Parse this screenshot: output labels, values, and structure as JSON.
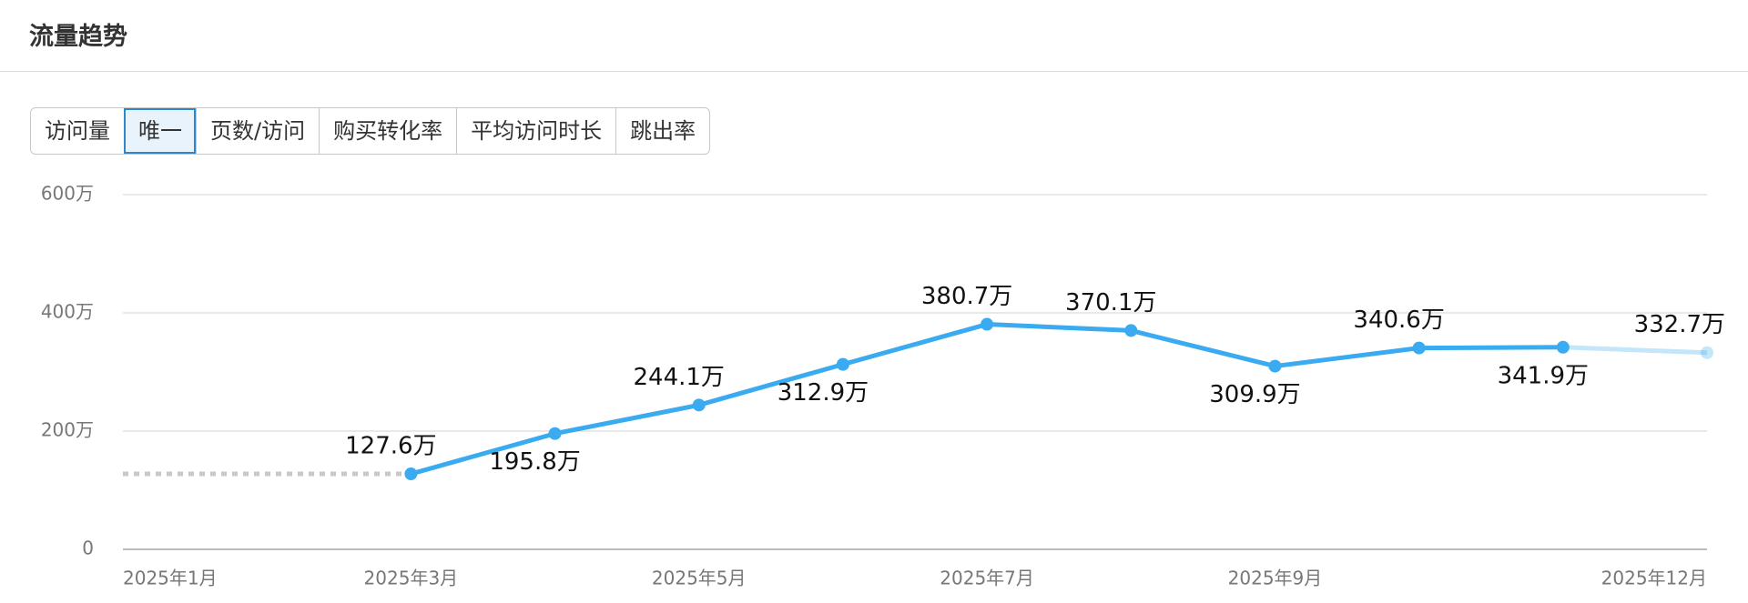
{
  "header": {
    "title": "流量趋势"
  },
  "tabs": [
    "访问量",
    "唯一",
    "页数/访问",
    "购买转化率",
    "平均访问时长",
    "跳出率"
  ],
  "chart_data": {
    "type": "line",
    "categories": [
      "2025年1月",
      null,
      "2025年3月",
      null,
      "2025年5月",
      null,
      "2025年7月",
      null,
      "2025年9月",
      null,
      null,
      "2025年12月"
    ],
    "values": [
      null,
      null,
      127.6,
      195.8,
      244.1,
      312.9,
      380.7,
      370.1,
      309.9,
      340.6,
      341.9,
      332.7
    ],
    "value_labels": [
      null,
      null,
      "127.6万",
      "195.8万",
      "244.1万",
      "312.9万",
      "380.7万",
      "370.1万",
      "309.9万",
      "340.6万",
      "341.9万",
      "332.7万"
    ],
    "color": "#3aabf0",
    "ylim": [
      0,
      600
    ],
    "yticks": [
      0,
      {
        "value": 200,
        "label": "200万"
      },
      {
        "value": 400,
        "label": "400万"
      },
      {
        "value": 600,
        "label": "600万"
      }
    ],
    "grid": true
  }
}
